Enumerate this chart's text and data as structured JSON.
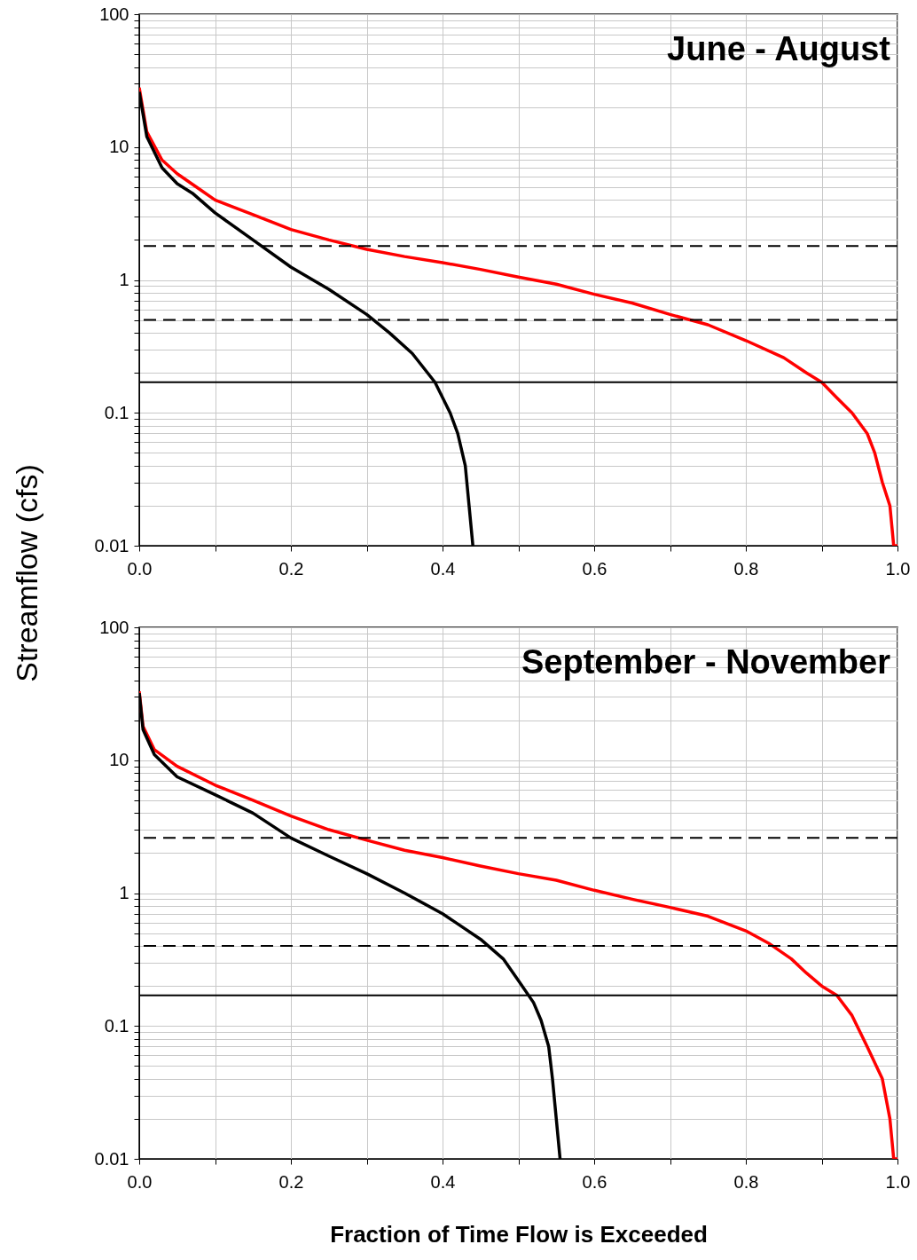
{
  "chart_data": [
    {
      "type": "line",
      "title": "June - August",
      "ylabel": "Streamflow (cfs)",
      "log": "y",
      "grid": true,
      "marker": "none",
      "line_style": "solid",
      "xlim": [
        0,
        1
      ],
      "ylim": [
        0.01,
        100
      ],
      "xticks": [
        {
          "value": 0,
          "label": "0.0"
        },
        {
          "value": 0.1,
          "label": null
        },
        0.2,
        {
          "value": 0.3,
          "label": null
        },
        0.4,
        {
          "value": 0.5,
          "label": null
        },
        0.6,
        {
          "value": 0.7,
          "label": null
        },
        0.8,
        {
          "value": 0.9,
          "label": null
        },
        {
          "value": 1,
          "label": "1.0"
        }
      ],
      "yticks": [
        0.01,
        {
          "value": 0.02,
          "label": null
        },
        {
          "value": 0.03,
          "label": null
        },
        {
          "value": 0.04,
          "label": null
        },
        {
          "value": 0.05,
          "label": null
        },
        {
          "value": 0.06,
          "label": null
        },
        {
          "value": 0.07,
          "label": null
        },
        {
          "value": 0.08,
          "label": null
        },
        {
          "value": 0.09,
          "label": null
        },
        0.1,
        {
          "value": 0.2,
          "label": null
        },
        {
          "value": 0.3,
          "label": null
        },
        {
          "value": 0.4,
          "label": null
        },
        {
          "value": 0.5,
          "label": null
        },
        {
          "value": 0.6,
          "label": null
        },
        {
          "value": 0.7,
          "label": null
        },
        {
          "value": 0.8,
          "label": null
        },
        {
          "value": 0.9,
          "label": null
        },
        1,
        {
          "value": 2,
          "label": null
        },
        {
          "value": 3,
          "label": null
        },
        {
          "value": 4,
          "label": null
        },
        {
          "value": 5,
          "label": null
        },
        {
          "value": 6,
          "label": null
        },
        {
          "value": 7,
          "label": null
        },
        {
          "value": 8,
          "label": null
        },
        {
          "value": 9,
          "label": null
        },
        10,
        {
          "value": 20,
          "label": null
        },
        {
          "value": 30,
          "label": null
        },
        {
          "value": 40,
          "label": null
        },
        {
          "value": 50,
          "label": null
        },
        {
          "value": 60,
          "label": null
        },
        {
          "value": 70,
          "label": null
        },
        {
          "value": 80,
          "label": null
        },
        {
          "value": 90,
          "label": null
        },
        100
      ],
      "series": [
        {
          "color": "#ff0000",
          "x": [
            0,
            0.01,
            0.03,
            0.05,
            0.08,
            0.1,
            0.15,
            0.2,
            0.25,
            0.3,
            0.35,
            0.4,
            0.45,
            0.5,
            0.55,
            0.6,
            0.65,
            0.7,
            0.75,
            0.8,
            0.85,
            0.88,
            0.9,
            0.92,
            0.94,
            0.96,
            0.97,
            0.98,
            0.99,
            0.995,
            1
          ],
          "values": [
            28,
            13,
            8,
            6.3,
            4.8,
            4,
            3.1,
            2.4,
            2,
            1.7,
            1.5,
            1.35,
            1.2,
            1.05,
            0.93,
            0.78,
            0.67,
            0.55,
            0.46,
            0.35,
            0.26,
            0.2,
            0.17,
            0.13,
            0.1,
            0.07,
            0.05,
            0.03,
            0.02,
            0.01,
            0.01
          ]
        },
        {
          "color": "#000000",
          "x": [
            0,
            0.01,
            0.03,
            0.05,
            0.07,
            0.1,
            0.15,
            0.2,
            0.25,
            0.3,
            0.33,
            0.36,
            0.39,
            0.41,
            0.42,
            0.43,
            0.435,
            0.44
          ],
          "values": [
            26,
            12,
            7,
            5.3,
            4.5,
            3.2,
            2,
            1.25,
            0.85,
            0.55,
            0.4,
            0.28,
            0.17,
            0.1,
            0.07,
            0.04,
            0.02,
            0.01
          ]
        }
      ],
      "ref_lines": [
        {
          "axis": "y",
          "value": 1.8,
          "color": "#000000",
          "line_style": "dashed"
        },
        {
          "axis": "y",
          "value": 0.5,
          "color": "#000000",
          "line_style": "dashed"
        },
        {
          "axis": "y",
          "value": 0.17,
          "color": "#000000",
          "line_style": "solid"
        }
      ]
    },
    {
      "type": "line",
      "title": "September - November",
      "xlabel": "Fraction of Time Flow is Exceeded",
      "log": "y",
      "grid": true,
      "marker": "none",
      "line_style": "solid",
      "xlim": [
        0,
        1
      ],
      "ylim": [
        0.01,
        100
      ],
      "xticks": [
        {
          "value": 0,
          "label": "0.0"
        },
        {
          "value": 0.1,
          "label": null
        },
        0.2,
        {
          "value": 0.3,
          "label": null
        },
        0.4,
        {
          "value": 0.5,
          "label": null
        },
        0.6,
        {
          "value": 0.7,
          "label": null
        },
        0.8,
        {
          "value": 0.9,
          "label": null
        },
        {
          "value": 1,
          "label": "1.0"
        }
      ],
      "yticks": [
        0.01,
        {
          "value": 0.02,
          "label": null
        },
        {
          "value": 0.03,
          "label": null
        },
        {
          "value": 0.04,
          "label": null
        },
        {
          "value": 0.05,
          "label": null
        },
        {
          "value": 0.06,
          "label": null
        },
        {
          "value": 0.07,
          "label": null
        },
        {
          "value": 0.08,
          "label": null
        },
        {
          "value": 0.09,
          "label": null
        },
        0.1,
        {
          "value": 0.2,
          "label": null
        },
        {
          "value": 0.3,
          "label": null
        },
        {
          "value": 0.4,
          "label": null
        },
        {
          "value": 0.5,
          "label": null
        },
        {
          "value": 0.6,
          "label": null
        },
        {
          "value": 0.7,
          "label": null
        },
        {
          "value": 0.8,
          "label": null
        },
        {
          "value": 0.9,
          "label": null
        },
        1,
        {
          "value": 2,
          "label": null
        },
        {
          "value": 3,
          "label": null
        },
        {
          "value": 4,
          "label": null
        },
        {
          "value": 5,
          "label": null
        },
        {
          "value": 6,
          "label": null
        },
        {
          "value": 7,
          "label": null
        },
        {
          "value": 8,
          "label": null
        },
        {
          "value": 9,
          "label": null
        },
        10,
        {
          "value": 20,
          "label": null
        },
        {
          "value": 30,
          "label": null
        },
        {
          "value": 40,
          "label": null
        },
        {
          "value": 50,
          "label": null
        },
        {
          "value": 60,
          "label": null
        },
        {
          "value": 70,
          "label": null
        },
        {
          "value": 80,
          "label": null
        },
        {
          "value": 90,
          "label": null
        },
        100
      ],
      "series": [
        {
          "color": "#ff0000",
          "x": [
            0,
            0.005,
            0.02,
            0.05,
            0.1,
            0.15,
            0.2,
            0.25,
            0.3,
            0.35,
            0.4,
            0.45,
            0.5,
            0.55,
            0.6,
            0.65,
            0.7,
            0.75,
            0.8,
            0.83,
            0.86,
            0.88,
            0.9,
            0.92,
            0.94,
            0.96,
            0.98,
            0.99,
            0.995,
            1
          ],
          "values": [
            33,
            18,
            12,
            9,
            6.5,
            5,
            3.8,
            3,
            2.5,
            2.1,
            1.85,
            1.6,
            1.4,
            1.25,
            1.05,
            0.9,
            0.78,
            0.67,
            0.52,
            0.42,
            0.32,
            0.25,
            0.2,
            0.17,
            0.12,
            0.07,
            0.04,
            0.02,
            0.01,
            0.01
          ]
        },
        {
          "color": "#000000",
          "x": [
            0,
            0.005,
            0.02,
            0.05,
            0.1,
            0.15,
            0.2,
            0.25,
            0.3,
            0.35,
            0.4,
            0.45,
            0.48,
            0.5,
            0.52,
            0.53,
            0.54,
            0.545,
            0.55,
            0.555
          ],
          "values": [
            32,
            17,
            11,
            7.5,
            5.5,
            4,
            2.6,
            1.9,
            1.4,
            1,
            0.7,
            0.45,
            0.32,
            0.22,
            0.15,
            0.11,
            0.07,
            0.04,
            0.02,
            0.01
          ]
        }
      ],
      "ref_lines": [
        {
          "axis": "y",
          "value": 2.6,
          "color": "#000000",
          "line_style": "dashed"
        },
        {
          "axis": "y",
          "value": 0.4,
          "color": "#000000",
          "line_style": "dashed"
        },
        {
          "axis": "y",
          "value": 0.17,
          "color": "#000000",
          "line_style": "solid"
        }
      ]
    }
  ]
}
